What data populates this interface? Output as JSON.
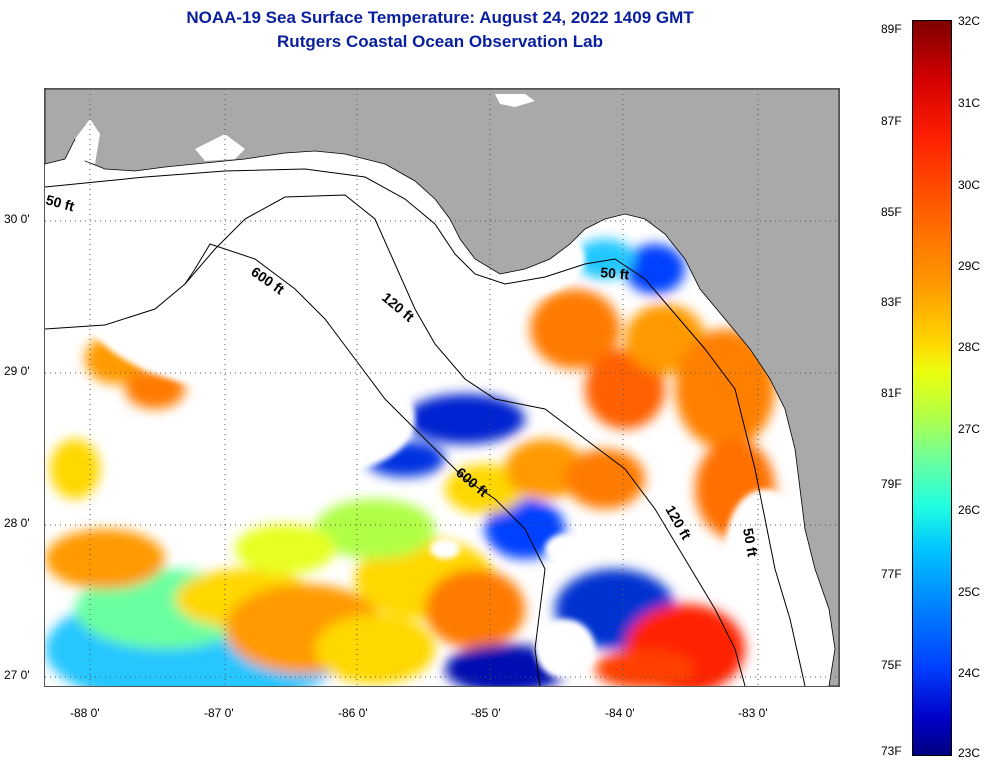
{
  "title": {
    "line1": "NOAA-19 Sea Surface Temperature:  August 24, 2022 1409 GMT",
    "line2": "Rutgers Coastal Ocean Observation Lab"
  },
  "axes": {
    "x_ticks": [
      "-88 0'",
      "-87 0'",
      "-86 0'",
      "-85 0'",
      "-84 0'",
      "-83 0'"
    ],
    "y_ticks": [
      "30 0'",
      "29 0'",
      "28 0'",
      "27 0'"
    ]
  },
  "contours": {
    "labels": [
      "50 ft",
      "600 ft",
      "120 ft",
      "50 ft",
      "600 ft",
      "120 ft",
      "50 ft"
    ]
  },
  "colorbar": {
    "fahrenheit": [
      "89F",
      "87F",
      "85F",
      "83F",
      "81F",
      "79F",
      "77F",
      "75F",
      "73F"
    ],
    "celsius": [
      "32C",
      "31C",
      "30C",
      "29C",
      "28C",
      "27C",
      "26C",
      "25C",
      "24C",
      "23C"
    ]
  },
  "colors": {
    "title": "#0a1f9e",
    "land": "#a9a9a9",
    "cloud": "#ffffff",
    "grid": "#555555"
  }
}
